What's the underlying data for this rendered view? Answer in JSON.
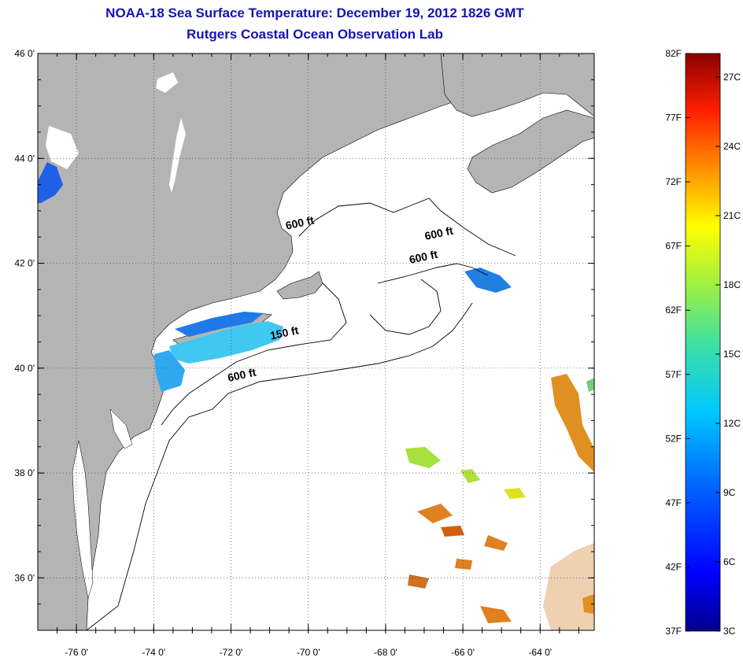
{
  "header": {
    "title": "NOAA-18 Sea Surface Temperature:  December 19, 2012 1826 GMT",
    "subtitle": "Rutgers Coastal Ocean Observation Lab"
  },
  "map": {
    "lat_range": [
      35,
      46
    ],
    "lon_range": [
      -77,
      -62.6
    ],
    "lat_ticks": [
      {
        "value": 46,
        "label": "46 0'"
      },
      {
        "value": 44,
        "label": "44 0'"
      },
      {
        "value": 42,
        "label": "42 0'"
      },
      {
        "value": 40,
        "label": "40 0'"
      },
      {
        "value": 38,
        "label": "38 0'"
      },
      {
        "value": 36,
        "label": "36 0'"
      }
    ],
    "lon_ticks": [
      {
        "value": -76,
        "label": "-76 0'"
      },
      {
        "value": -74,
        "label": "-74 0'"
      },
      {
        "value": -72,
        "label": "-72 0'"
      },
      {
        "value": -70,
        "label": "-70 0'"
      },
      {
        "value": -68,
        "label": "-68 0'"
      },
      {
        "value": -66,
        "label": "-66 0'"
      },
      {
        "value": -64,
        "label": "-64 0'"
      }
    ],
    "contour_labels": [
      {
        "text": "600 ft",
        "lon": -70.2,
        "lat": 42.7
      },
      {
        "text": "600 ft",
        "lon": -66.6,
        "lat": 42.5
      },
      {
        "text": "600 ft",
        "lon": -67.0,
        "lat": 42.05
      },
      {
        "text": "150 ft",
        "lon": -70.6,
        "lat": 40.6
      },
      {
        "text": "600 ft",
        "lon": -71.7,
        "lat": 39.8
      }
    ],
    "colors": {
      "land": "#b4b4b4",
      "ocean": "#ffffff",
      "grid": "#555555"
    }
  },
  "colorbar": {
    "left_labels": [
      "82F",
      "77F",
      "72F",
      "67F",
      "62F",
      "57F",
      "52F",
      "47F",
      "42F",
      "37F"
    ],
    "right_labels": [
      "27C",
      "24C",
      "21C",
      "18C",
      "15C",
      "12C",
      "9C",
      "6C",
      "3C"
    ]
  }
}
